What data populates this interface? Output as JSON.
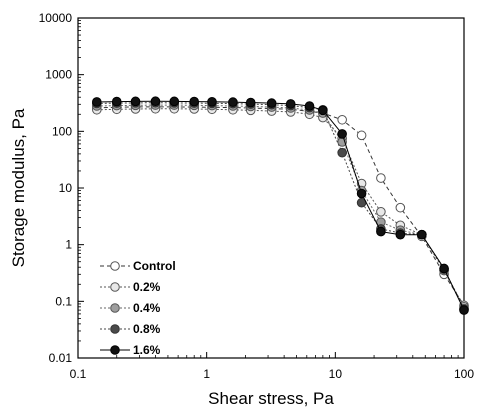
{
  "chart_data": {
    "type": "scatter",
    "title": "",
    "xlabel": "Shear stress, Pa",
    "ylabel": "Storage modulus, Pa",
    "xscale": "log",
    "yscale": "log",
    "xlim": [
      0.1,
      100
    ],
    "ylim": [
      0.01,
      10000
    ],
    "x_tick_labels": [
      "0.1",
      "1",
      "10",
      "100"
    ],
    "y_tick_labels": [
      "0.01",
      "0.1",
      "1",
      "10",
      "100",
      "1000",
      "10000"
    ],
    "grid": false,
    "legend_position": "lower-left",
    "series": [
      {
        "name": "Control",
        "marker_fill": "#ffffff",
        "marker_stroke": "#555555",
        "line_color": "#333333",
        "line_style": "dashed",
        "x": [
          0.14,
          0.2,
          0.28,
          0.4,
          0.56,
          0.8,
          1.1,
          1.6,
          2.2,
          3.2,
          4.5,
          6.3,
          8.0,
          11.3,
          16.0,
          22.6,
          32.0,
          47.0,
          70.0,
          100.0
        ],
        "y": [
          260,
          265,
          270,
          270,
          270,
          268,
          265,
          262,
          258,
          252,
          245,
          225,
          210,
          160,
          85,
          15,
          4.5,
          1.4,
          0.3,
          0.085
        ]
      },
      {
        "name": "0.2%",
        "marker_fill": "#e8e8e8",
        "marker_stroke": "#555555",
        "line_color": "#555555",
        "line_style": "dotted",
        "x": [
          0.14,
          0.2,
          0.28,
          0.4,
          0.56,
          0.8,
          1.1,
          1.6,
          2.2,
          3.2,
          4.5,
          6.3,
          8.0,
          11.3,
          16.0,
          22.6,
          32.0,
          47.0,
          70.0,
          100.0
        ],
        "y": [
          240,
          245,
          248,
          250,
          250,
          248,
          245,
          240,
          235,
          228,
          220,
          200,
          175,
          75,
          12,
          3.8,
          2.2,
          1.5,
          0.35,
          0.08
        ]
      },
      {
        "name": "0.4%",
        "marker_fill": "#9e9e9e",
        "marker_stroke": "#555555",
        "line_color": "#666666",
        "line_style": "dotted",
        "x": [
          0.14,
          0.2,
          0.28,
          0.4,
          0.56,
          0.8,
          1.1,
          1.6,
          2.2,
          3.2,
          4.5,
          6.3,
          8.0,
          11.3,
          16.0,
          22.6,
          32.0,
          47.0,
          70.0,
          100.0
        ],
        "y": [
          280,
          285,
          288,
          290,
          290,
          288,
          285,
          280,
          275,
          268,
          258,
          238,
          210,
          65,
          9,
          2.5,
          1.8,
          1.5,
          0.35,
          0.075
        ]
      },
      {
        "name": "0.8%",
        "marker_fill": "#4a4a4a",
        "marker_stroke": "#333333",
        "line_color": "#444444",
        "line_style": "dotted",
        "x": [
          0.14,
          0.2,
          0.28,
          0.4,
          0.56,
          0.8,
          1.1,
          1.6,
          2.2,
          3.2,
          4.5,
          6.3,
          8.0,
          11.3,
          16.0,
          22.6,
          32.0,
          47.0,
          70.0,
          100.0
        ],
        "y": [
          310,
          315,
          318,
          320,
          318,
          315,
          312,
          308,
          302,
          295,
          285,
          262,
          240,
          42,
          5.5,
          1.9,
          1.6,
          1.5,
          0.37,
          0.072
        ]
      },
      {
        "name": "1.6%",
        "marker_fill": "#111111",
        "marker_stroke": "#000000",
        "line_color": "#000000",
        "line_style": "solid",
        "x": [
          0.14,
          0.2,
          0.28,
          0.4,
          0.56,
          0.8,
          1.1,
          1.6,
          2.2,
          3.2,
          4.5,
          6.3,
          8.0,
          11.3,
          16.0,
          22.6,
          32.0,
          47.0,
          70.0,
          100.0
        ],
        "y": [
          330,
          335,
          338,
          340,
          338,
          335,
          332,
          328,
          322,
          315,
          305,
          280,
          235,
          90,
          8,
          1.7,
          1.5,
          1.5,
          0.38,
          0.07
        ]
      }
    ]
  }
}
